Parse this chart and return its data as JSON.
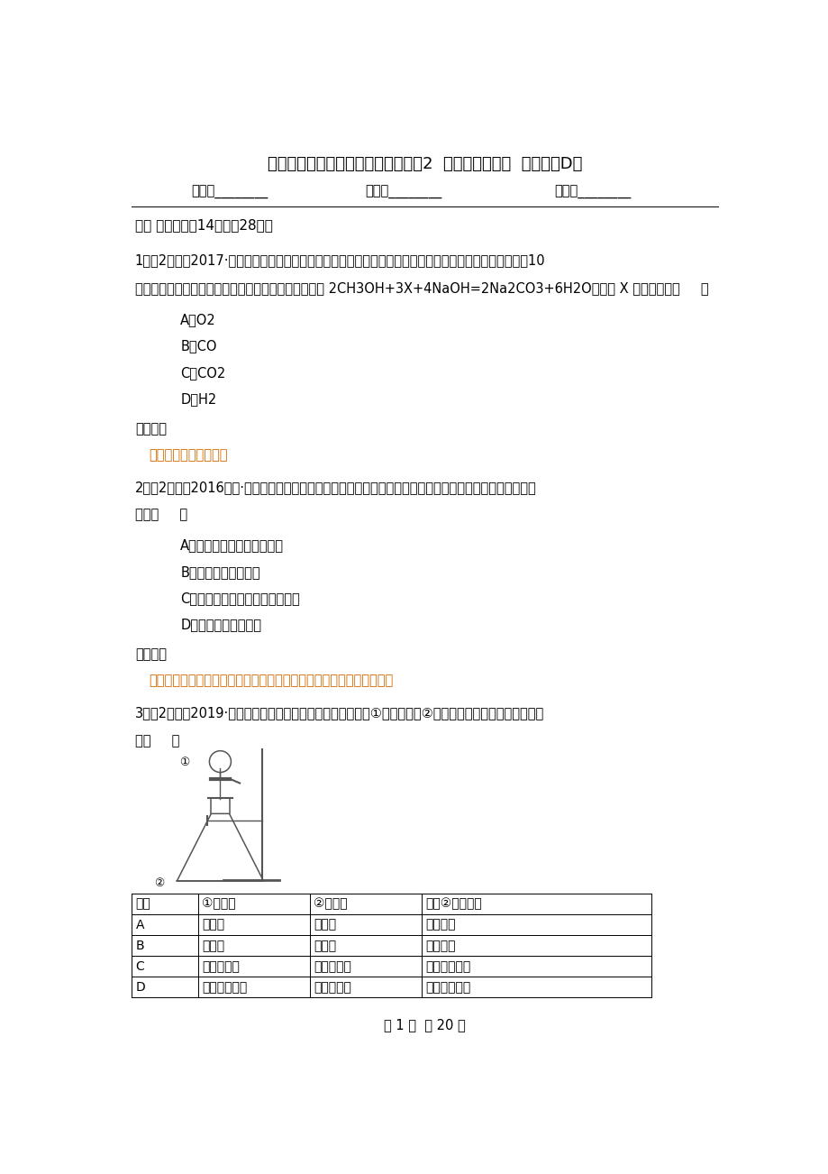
{
  "title": "人教版化学九年级下册第八单元课题2  金属的化学性质  同步训练D卷",
  "header_fields": [
    "姓名：________",
    "班级：________",
    "成绩：________"
  ],
  "section1": "一、 单选题（共14题；共28分）",
  "q1_text1": "1．（2分）（2017·卢龙模拟）摩托罗拉公司研发了一种由甲醇为原料的新型手机电池，其容量为锂电池的10",
  "q1_text2": "倍，可连续使用一个月才充一次电，其电池反应原理为 2CH3OH+3X+4NaOH=2Na2CO3+6H2O，其中 X 的化学式为（     ）",
  "q1_options": [
    "A．O2",
    "B．CO",
    "C．CO2",
    "D．H2"
  ],
  "q1_kaodian": "【考点】",
  "q1_kaodian_link": "质量守恒定律及其应用",
  "q2_text1": "2．（2分）（2016九上·平和期末）化学就在我们身边，学好化学可以走出许多认识上的误区。下列说法错误",
  "q2_text2": "的是（     ）",
  "q2_options": [
    "A．金刚石不是金，是碳单质",
    "B．水银不是银，是汞",
    "C．干冰不是冰，是固态二氧化碳",
    "D．铅笔不是笔，是铅"
  ],
  "q2_kaodian": "【考点】",
  "q2_kaodian_link": "二氧化碳的物理性质；碳单质的性质和用途；常见金属的特性及其应用",
  "q3_text1": "3．（2分）（2019·海南）用如图所示装置进行下列实验：将①中溶液滴入②中，预测的现象与实际不相符的",
  "q3_text2": "是（     ）",
  "table_headers": [
    "选项",
    "①中物质",
    "②中物质",
    "预测②中的现象"
  ],
  "table_rows": [
    [
      "A",
      "稀盐酸",
      "碳酸钙",
      "产生气泡"
    ],
    [
      "B",
      "浓硫酸",
      "氧化铁",
      "产生气泡"
    ],
    [
      "C",
      "氯化钡溶液",
      "硫酸钾溶液",
      "产生白色沉淀"
    ],
    [
      "D",
      "氢氧化钠溶液",
      "硫酸铜溶液",
      "产生蓝色沉淀"
    ]
  ],
  "footer": "第 1 页  共 20 页",
  "link_color": "#d46a00",
  "bg_color": "#ffffff",
  "text_color": "#000000"
}
